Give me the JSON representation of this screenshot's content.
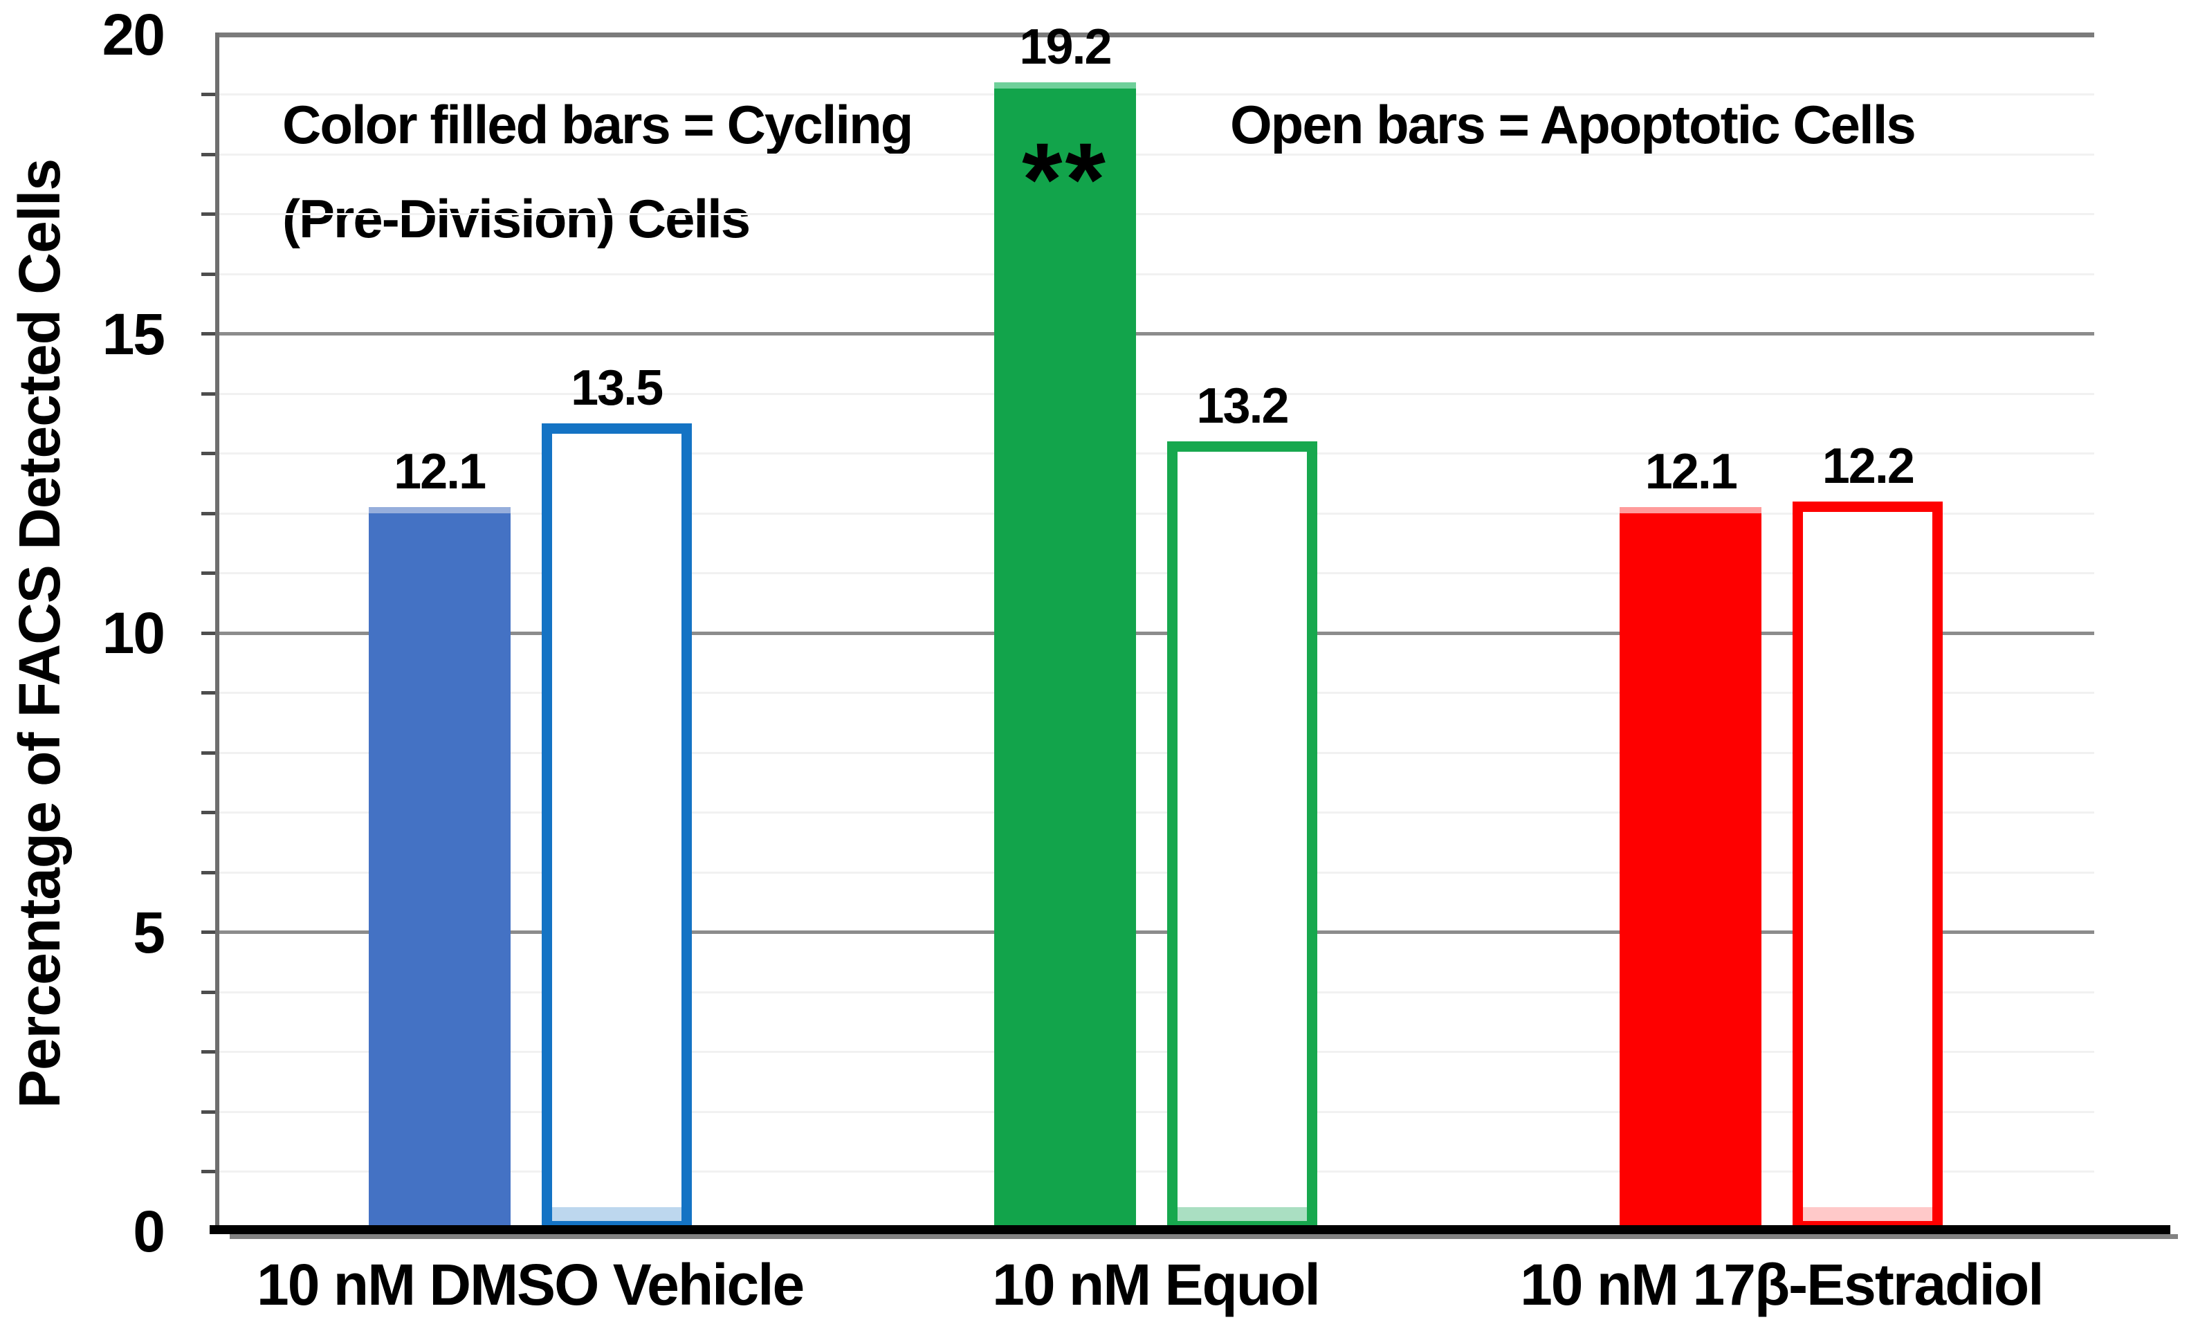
{
  "figure": {
    "ylabel": "Percentage of FACS Detected Cells",
    "annotation_left_line1": "Color filled bars = Cycling",
    "annotation_left_line2": "(Pre-Division) Cells",
    "annotation_right": "Open bars = Apoptotic Cells"
  },
  "chart_data": {
    "type": "bar",
    "title": "",
    "xlabel": "",
    "ylabel": "Percentage of FACS Detected Cells",
    "ylim": [
      0,
      20
    ],
    "yticks": [
      0,
      5,
      10,
      15,
      20
    ],
    "minor_unit": 1,
    "grid": true,
    "legend_position": "none",
    "legend_note_filled": "Color filled bars = Cycling (Pre-Division) Cells",
    "legend_note_open": "Open bars = Apoptotic Cells",
    "categories": [
      "10 nM DMSO Vehicle",
      "10 nM Equol",
      "10 nM 17β-Estradiol"
    ],
    "series": [
      {
        "name": "Cycling (Pre-Division) Cells",
        "style": "filled",
        "values": [
          12.1,
          19.2,
          12.1
        ]
      },
      {
        "name": "Apoptotic Cells",
        "style": "open",
        "values": [
          13.5,
          13.2,
          12.2
        ]
      }
    ],
    "group_colors": [
      {
        "fill": "#4472C4",
        "fill_top": "#96AEDC",
        "line": "#1473C4",
        "band": "#BDD7EE"
      },
      {
        "fill": "#12A44B",
        "fill_top": "#6FD09A",
        "line": "#17A84E",
        "band": "#AADFC2"
      },
      {
        "fill": "#FE0000",
        "fill_top": "#FF9B9B",
        "line": "#FE0000",
        "band": "#FFC9C9"
      }
    ],
    "annotations": [
      {
        "text": "**",
        "category_index": 1,
        "series_index": 0,
        "meaning": "significance marker"
      }
    ]
  }
}
